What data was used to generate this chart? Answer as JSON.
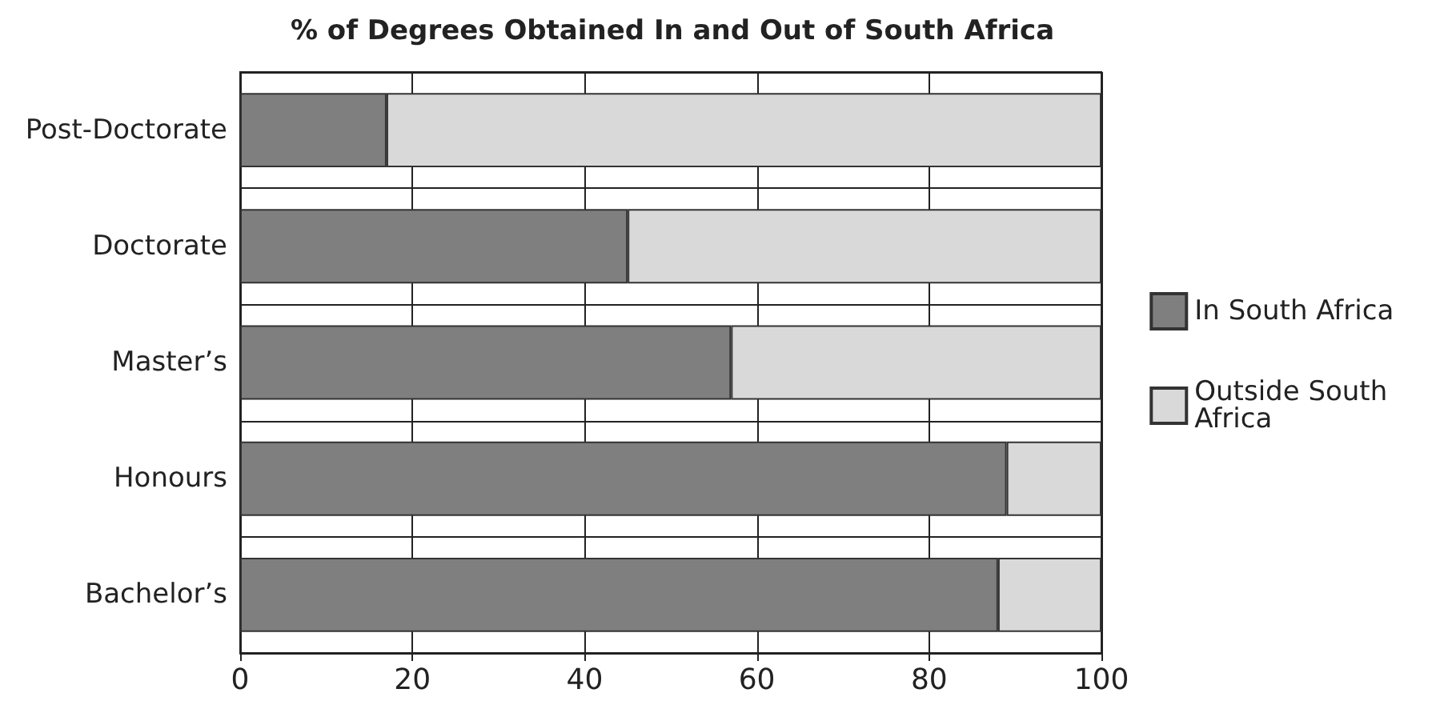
{
  "chart_data": {
    "type": "bar",
    "orientation": "horizontal",
    "stacked": true,
    "title": "% of Degrees Obtained In and Out of South Africa",
    "categories": [
      "Post-Doctorate",
      "Doctorate",
      "Master’s",
      "Honours",
      "Bachelor’s"
    ],
    "series": [
      {
        "name": "In South Africa",
        "color": "#7f7f7f",
        "values": [
          17,
          45,
          57,
          89,
          88
        ]
      },
      {
        "name": "Outside South Africa",
        "color": "#d9d9d9",
        "values": [
          83,
          55,
          43,
          11,
          12
        ]
      }
    ],
    "xlim": [
      0,
      100
    ],
    "xticks": [
      0,
      20,
      40,
      60,
      80,
      100
    ],
    "grid": true,
    "legend": "right"
  }
}
